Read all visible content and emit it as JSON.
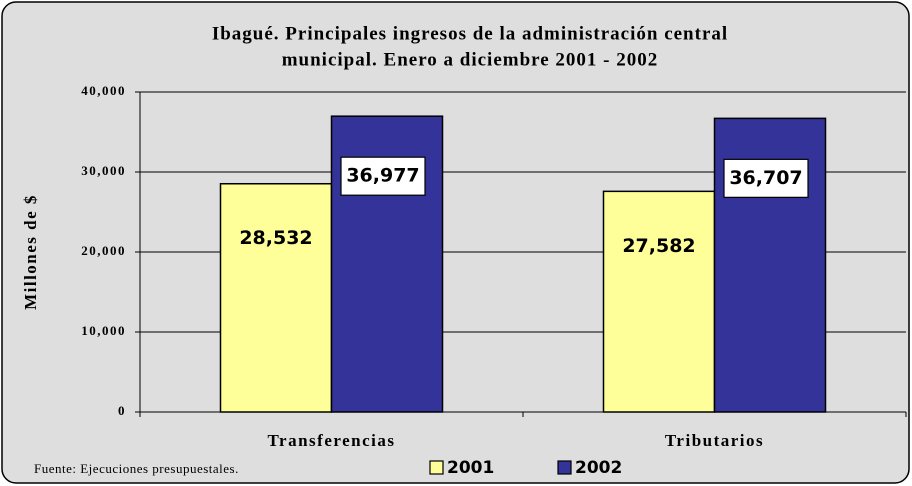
{
  "chart_data": {
    "type": "bar",
    "title": [
      "Ibagué. Principales ingresos de la administración central",
      "municipal. Enero a diciembre 2001 - 2002"
    ],
    "y_label": "Millones de $",
    "categories": [
      "Transferencias",
      "Tributarios"
    ],
    "series": [
      {
        "name": "2001",
        "color": "#ffff99",
        "values": [
          28532,
          27582
        ],
        "value_labels": [
          "28,532",
          "27,582"
        ]
      },
      {
        "name": "2002",
        "color": "#333399",
        "values": [
          36977,
          36707
        ],
        "value_labels": [
          "36,977",
          "36,707"
        ]
      }
    ],
    "ylim": [
      0,
      40000
    ],
    "yticks": [
      0,
      {
        "value": 10000,
        "label": "10,000"
      },
      {
        "value": 20000,
        "label": "20,000"
      },
      {
        "value": 30000,
        "label": "30,000"
      },
      {
        "value": 40000,
        "label": "40,000"
      }
    ],
    "grid": true,
    "legend": "bottom",
    "source": "Fuente: Ejecuciones presupuestales."
  }
}
